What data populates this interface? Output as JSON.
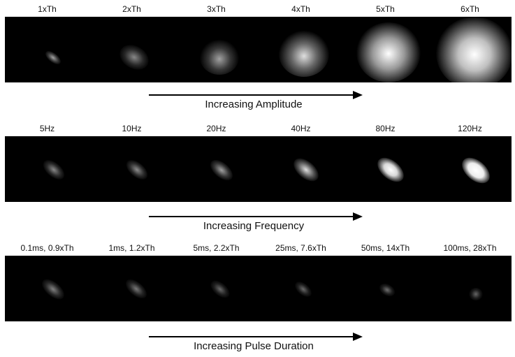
{
  "panels": [
    {
      "labels": [
        "1xTh",
        "2xTh",
        "3xTh",
        "4xTh",
        "5xTh",
        "6xTh"
      ],
      "caption": "Increasing Amplitude"
    },
    {
      "labels": [
        "5Hz",
        "10Hz",
        "20Hz",
        "40Hz",
        "80Hz",
        "120Hz"
      ],
      "caption": "Increasing Frequency"
    },
    {
      "labels": [
        "0.1ms, 0.9xTh",
        "1ms, 1.2xTh",
        "5ms, 2.2xTh",
        "25ms, 7.6xTh",
        "50ms, 14xTh",
        "100ms, 28xTh"
      ],
      "caption": "Increasing Pulse Duration"
    }
  ]
}
